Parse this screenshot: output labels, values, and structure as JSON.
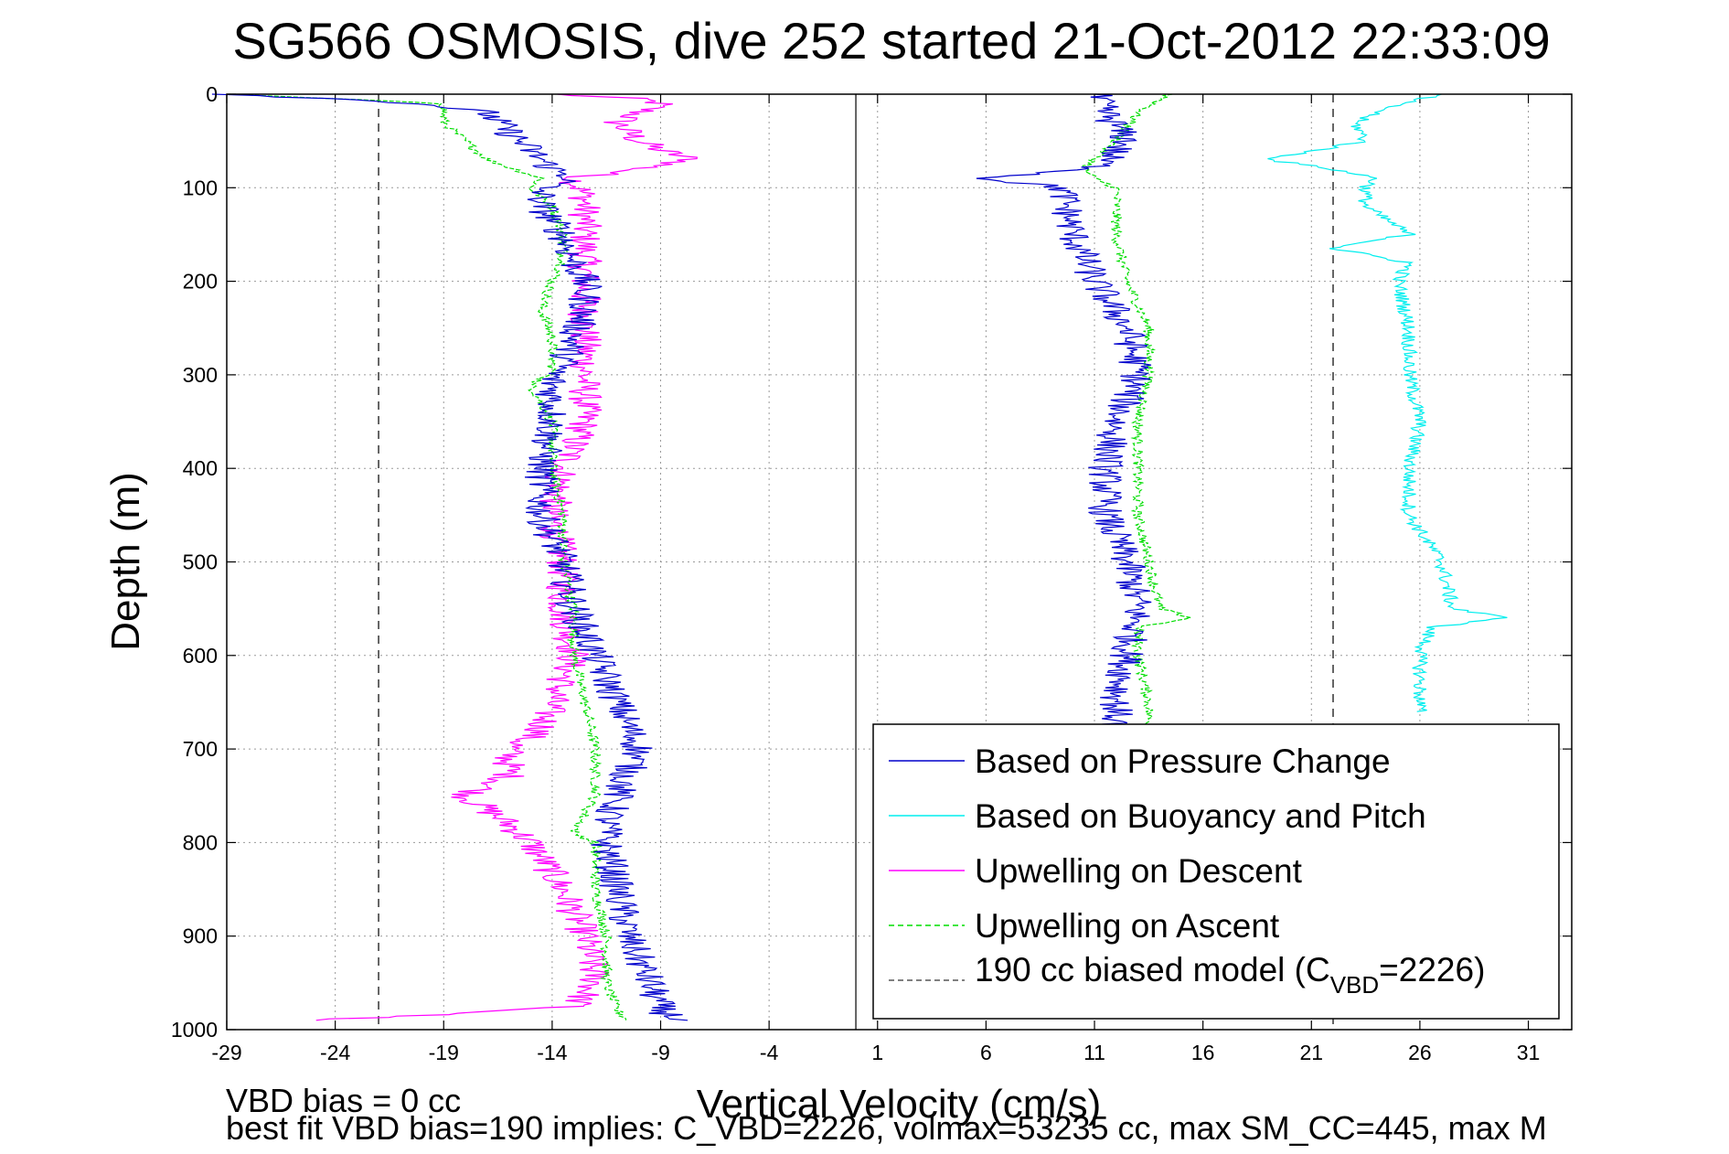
{
  "chart_data": {
    "type": "line",
    "title": "SG566 OSMOSIS, dive 252 started 21-Oct-2012 22:33:09",
    "xlabel": "Vertical Velocity (cm/s)",
    "ylabel": "Depth (m)",
    "xlim": [
      -29,
      33
    ],
    "ylim": [
      0,
      1000
    ],
    "y_reversed": true,
    "grid": true,
    "legend_position": "bottom-right",
    "xticks": [
      "-29",
      "-24",
      "-19",
      "-14",
      "-9",
      "-4",
      "1",
      "6",
      "11",
      "16",
      "21",
      "26",
      "31"
    ],
    "yticks": [
      "0",
      "100",
      "200",
      "300",
      "400",
      "500",
      "600",
      "700",
      "800",
      "900",
      "1000"
    ],
    "model_lines_x": [
      -22.0,
      22.0
    ],
    "zero_line_x": 0,
    "series": [
      {
        "name": "Based on Pressure Change",
        "color": "#0000cc",
        "style": "solid",
        "branches": [
          {
            "depth": [
              0,
              5,
              10,
              20,
              40,
              60,
              80,
              90,
              100,
              120,
              150,
              180,
              200,
              230,
              260,
              290,
              300,
              350,
              400,
              450,
              500,
              550,
              600,
              650,
              700,
              750,
              780,
              800,
              850,
              900,
              950,
              980,
              990
            ],
            "x": [
              -29,
              -24,
              -20,
              -17,
              -16,
              -15,
              -14,
              -13,
              -14.5,
              -14.5,
              -13.5,
              -13,
              -12.5,
              -12.5,
              -13,
              -13.5,
              -14,
              -14,
              -14.5,
              -14.5,
              -13.5,
              -13,
              -12,
              -11,
              -10,
              -11,
              -11.5,
              -11.5,
              -11,
              -10.5,
              -9.5,
              -9,
              -8
            ]
          },
          {
            "depth": [
              0,
              20,
              50,
              80,
              90,
              100,
              150,
              200,
              250,
              300,
              350,
              400,
              450,
              500,
              550,
              600,
              650,
              680
            ],
            "x": [
              11,
              11.5,
              12.5,
              11,
              6,
              9.5,
              10,
              11,
              12.5,
              13,
              12,
              11.5,
              11.5,
              12.5,
              13,
              12.5,
              12,
              12
            ]
          }
        ]
      },
      {
        "name": "Based on Buoyancy and Pitch",
        "color": "#00eeee",
        "style": "solid",
        "depth": [
          0,
          10,
          30,
          50,
          70,
          80,
          90,
          100,
          120,
          150,
          165,
          180,
          200,
          250,
          300,
          350,
          400,
          450,
          500,
          550,
          560,
          570,
          600,
          650,
          660
        ],
        "x": [
          27,
          25,
          23,
          23.5,
          19,
          22,
          24,
          23.5,
          23.5,
          25.5,
          22,
          25.5,
          25,
          25.5,
          25.5,
          26,
          25.5,
          25.5,
          27,
          27.5,
          30,
          26.5,
          26,
          26,
          26
        ]
      },
      {
        "name": "Upwelling on Descent",
        "color": "#ff00ff",
        "style": "solid",
        "depth": [
          0,
          5,
          10,
          30,
          50,
          60,
          70,
          80,
          90,
          110,
          150,
          200,
          250,
          300,
          350,
          400,
          450,
          500,
          550,
          600,
          650,
          680,
          700,
          730,
          750,
          780,
          800,
          850,
          900,
          950,
          975,
          985,
          990
        ],
        "x": [
          -14,
          -10,
          -9,
          -11,
          -10,
          -9,
          -7.5,
          -10,
          -13,
          -12.5,
          -12.5,
          -12.5,
          -12.5,
          -12.5,
          -12.5,
          -13.5,
          -14,
          -13.5,
          -13.5,
          -13,
          -14,
          -14.5,
          -16,
          -16,
          -18,
          -16,
          -15,
          -13.5,
          -12.5,
          -12,
          -13,
          -20,
          -25.5
        ]
      },
      {
        "name": "Upwelling on Ascent",
        "color": "#00dd00",
        "style": "dashed",
        "branches": [
          {
            "depth": [
              0,
              10,
              30,
              50,
              70,
              90,
              100,
              120,
              150,
              180,
              200,
              230,
              260,
              300,
              310,
              350,
              400,
              450,
              500,
              550,
              600,
              650,
              700,
              750,
              790,
              800,
              850,
              900,
              950,
              980,
              990
            ],
            "x": [
              -29,
              -19,
              -19,
              -18,
              -17,
              -14.5,
              -15,
              -14,
              -13.5,
              -13.5,
              -14,
              -14.5,
              -14,
              -14,
              -15,
              -14,
              -14,
              -13.5,
              -13.5,
              -13,
              -13,
              -12.5,
              -12,
              -12,
              -13,
              -12,
              -12,
              -11.5,
              -11.5,
              -11,
              -10.5
            ]
          },
          {
            "depth": [
              0,
              20,
              50,
              80,
              90,
              100,
              150,
              200,
              250,
              300,
              350,
              400,
              450,
              500,
              550,
              560,
              570,
              600,
              650,
              680
            ],
            "x": [
              14.5,
              13,
              12,
              10.5,
              11,
              12,
              12,
              12.5,
              13.5,
              13.5,
              13,
              13,
              13,
              13.5,
              14,
              15.5,
              13,
              13,
              13.5,
              13.5
            ]
          }
        ]
      },
      {
        "name": "190 cc biased model (C_VBD=2226)",
        "color": "#555555",
        "style": "dashed"
      }
    ]
  },
  "title_text": "SG566 OSMOSIS, dive 252 started 21-Oct-2012 22:33:09",
  "xlabel_text": "Vertical Velocity (cm/s)",
  "ylabel_text": "Depth (m)",
  "legend": {
    "item1": "Based on Pressure Change",
    "item2": "Based on Buoyancy and Pitch",
    "item3": "Upwelling on Descent",
    "item4": "Upwelling on Ascent",
    "item5_prefix": "190 cc biased model (C",
    "item5_sub": "VBD",
    "item5_suffix": "=2226)"
  },
  "notes": {
    "line1": "VBD bias = 0 cc",
    "line2": "best fit VBD bias=190 implies: C_VBD=2226, volmax=53235 cc, max SM_CC=445, max M"
  }
}
